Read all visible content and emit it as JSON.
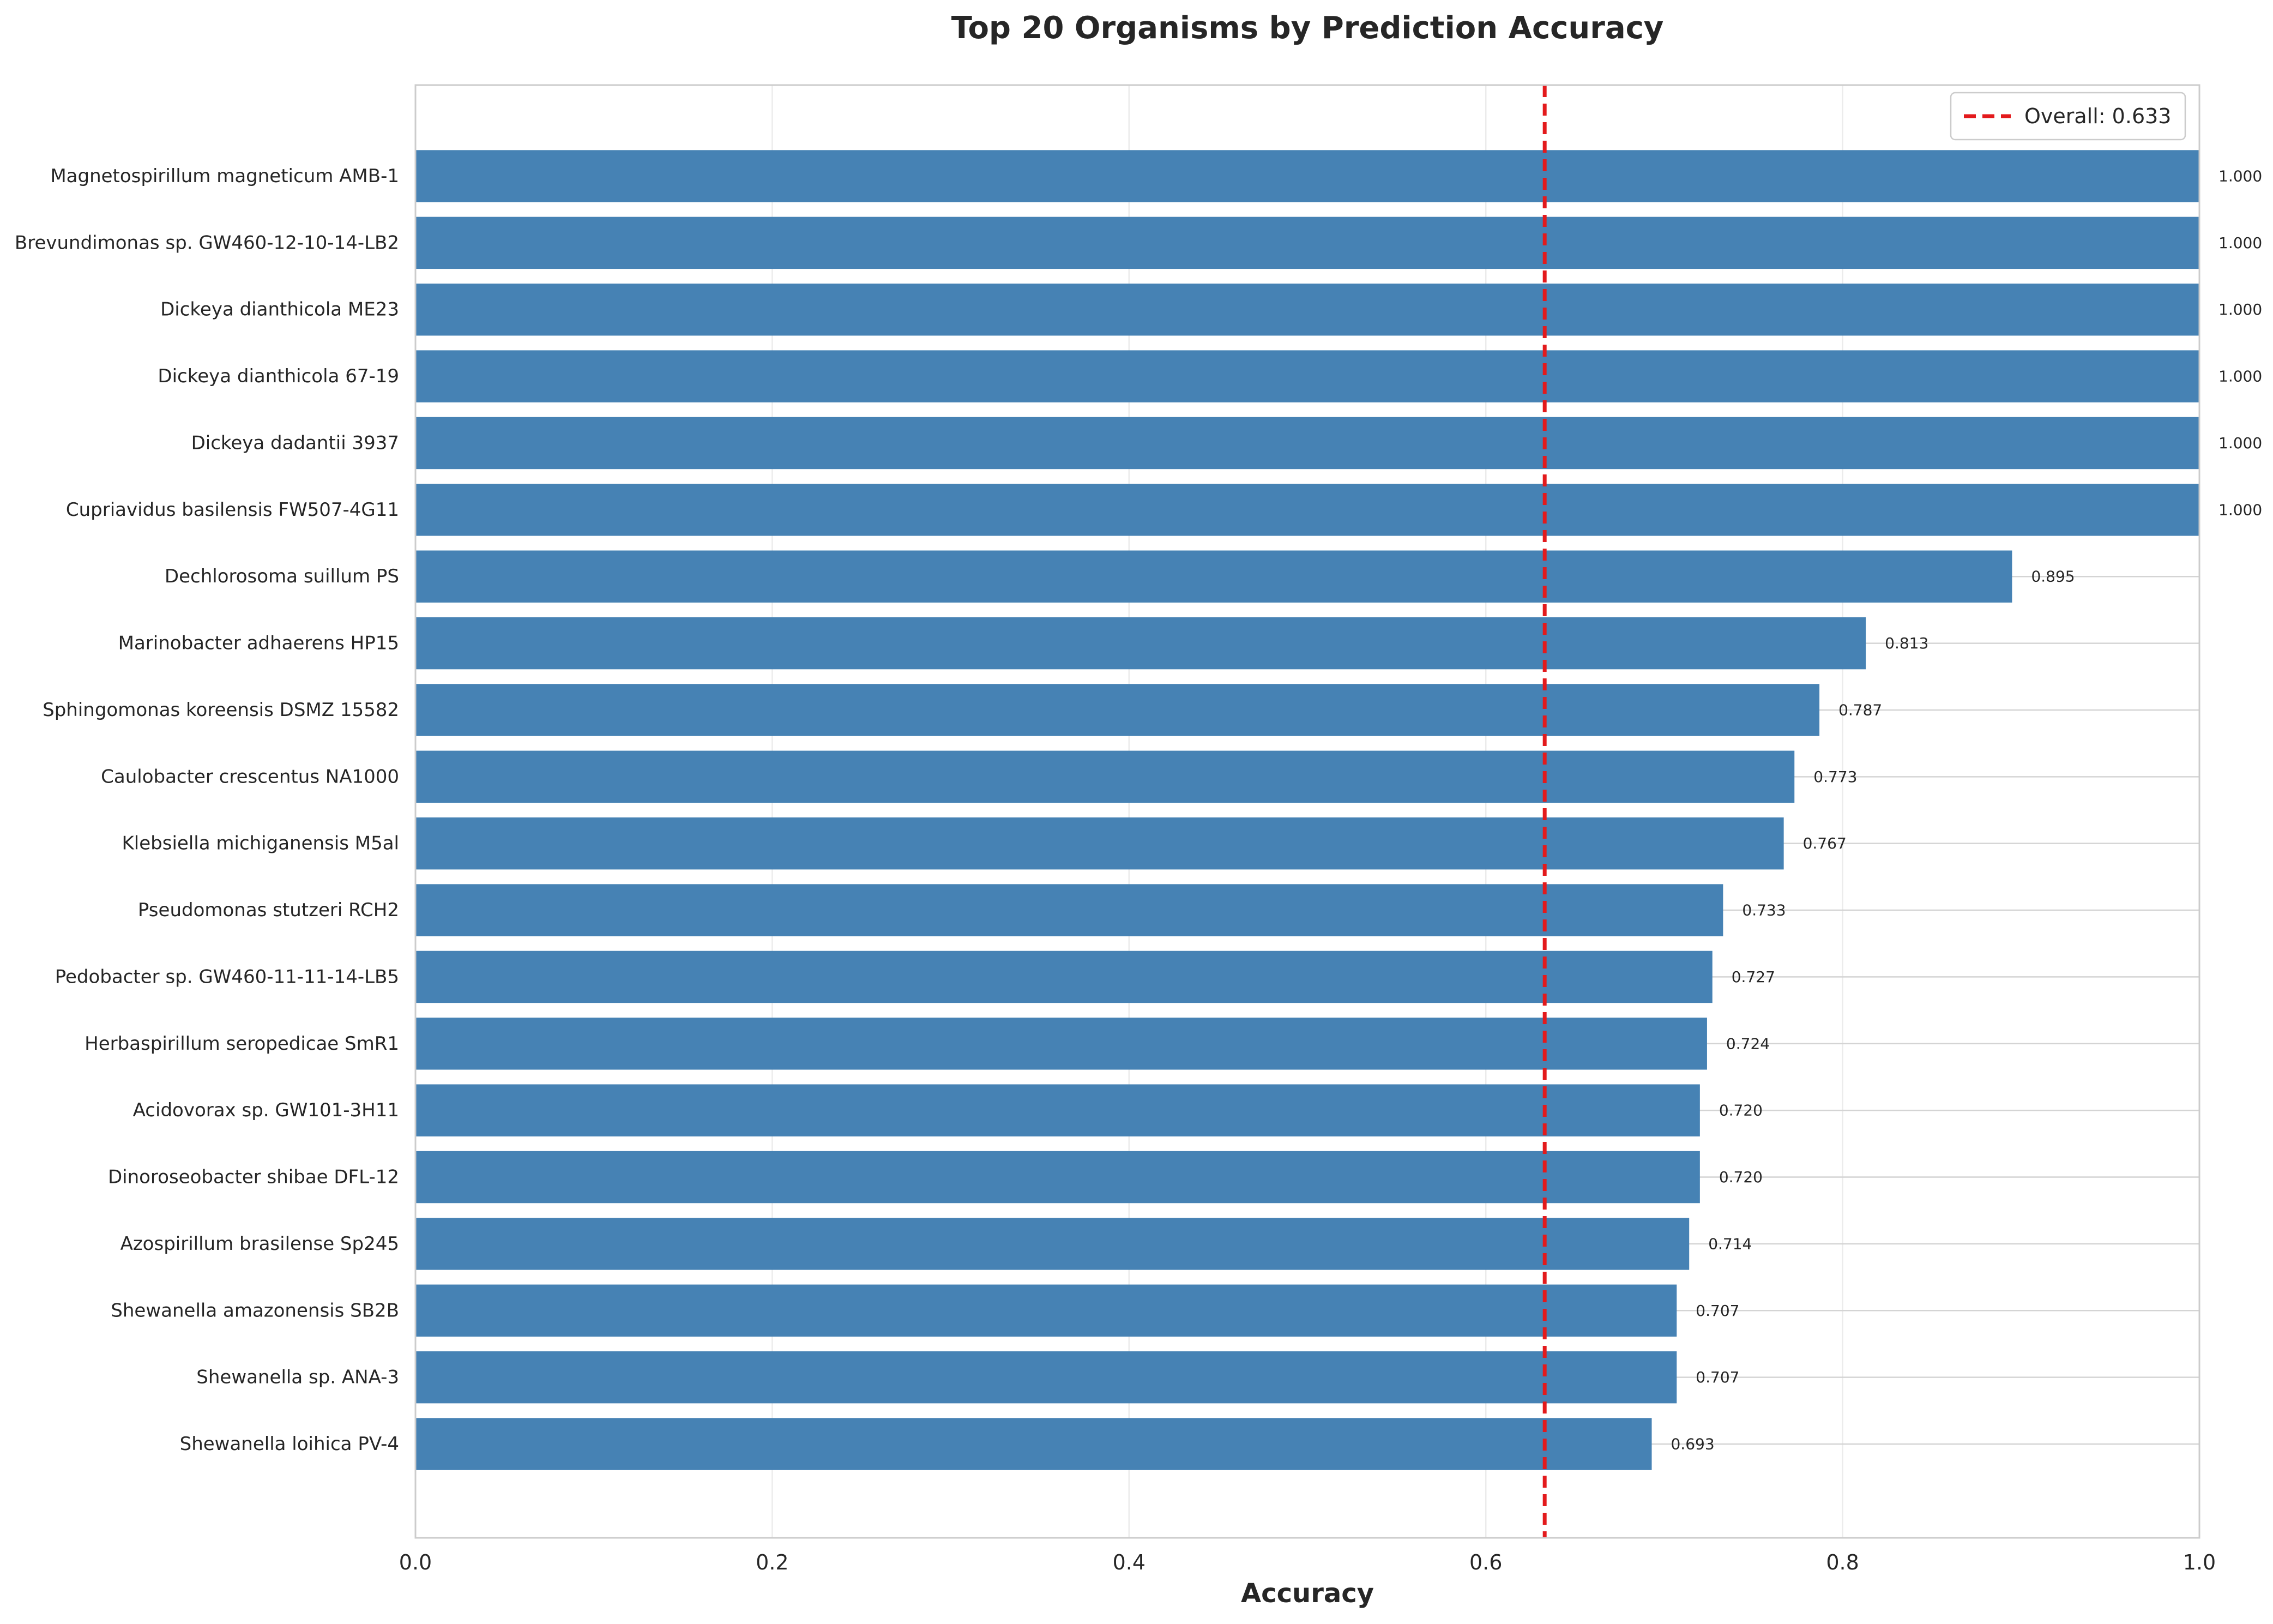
{
  "chart_data": {
    "type": "bar",
    "orientation": "horizontal",
    "title": "Top 20 Organisms by Prediction Accuracy",
    "xlabel": "Accuracy",
    "ylabel": "",
    "xlim": [
      0,
      1
    ],
    "xticks": [
      0.0,
      0.2,
      0.4,
      0.6,
      0.8,
      1.0
    ],
    "xtick_labels": [
      "0.0",
      "0.2",
      "0.4",
      "0.6",
      "0.8",
      "1.0"
    ],
    "grid": true,
    "legend_position": "top-right",
    "bar_color": "#4682b4",
    "reference_line_color": "#e31a1c",
    "categories": [
      "Magnetospirillum magneticum AMB-1",
      "Brevundimonas sp. GW460-12-10-14-LB2",
      "Dickeya dianthicola ME23",
      "Dickeya dianthicola 67-19",
      "Dickeya dadantii 3937",
      "Cupriavidus basilensis FW507-4G11",
      "Dechlorosoma suillum PS",
      "Marinobacter adhaerens HP15",
      "Sphingomonas koreensis DSMZ 15582",
      "Caulobacter crescentus NA1000",
      "Klebsiella michiganensis M5al",
      "Pseudomonas stutzeri RCH2",
      "Pedobacter sp. GW460-11-11-14-LB5",
      "Herbaspirillum seropedicae SmR1",
      "Acidovorax sp. GW101-3H11",
      "Dinoroseobacter shibae DFL-12",
      "Azospirillum brasilense Sp245",
      "Shewanella amazonensis SB2B",
      "Shewanella sp. ANA-3",
      "Shewanella loihica PV-4"
    ],
    "values": [
      1.0,
      1.0,
      1.0,
      1.0,
      1.0,
      1.0,
      0.895,
      0.813,
      0.787,
      0.773,
      0.767,
      0.733,
      0.727,
      0.724,
      0.72,
      0.72,
      0.714,
      0.707,
      0.707,
      0.693
    ],
    "value_labels": [
      "1.000",
      "1.000",
      "1.000",
      "1.000",
      "1.000",
      "1.000",
      "0.895",
      "0.813",
      "0.787",
      "0.773",
      "0.767",
      "0.733",
      "0.727",
      "0.724",
      "0.720",
      "0.720",
      "0.714",
      "0.707",
      "0.707",
      "0.693"
    ],
    "reference_line": {
      "value": 0.633,
      "label": "Overall: 0.633"
    }
  }
}
